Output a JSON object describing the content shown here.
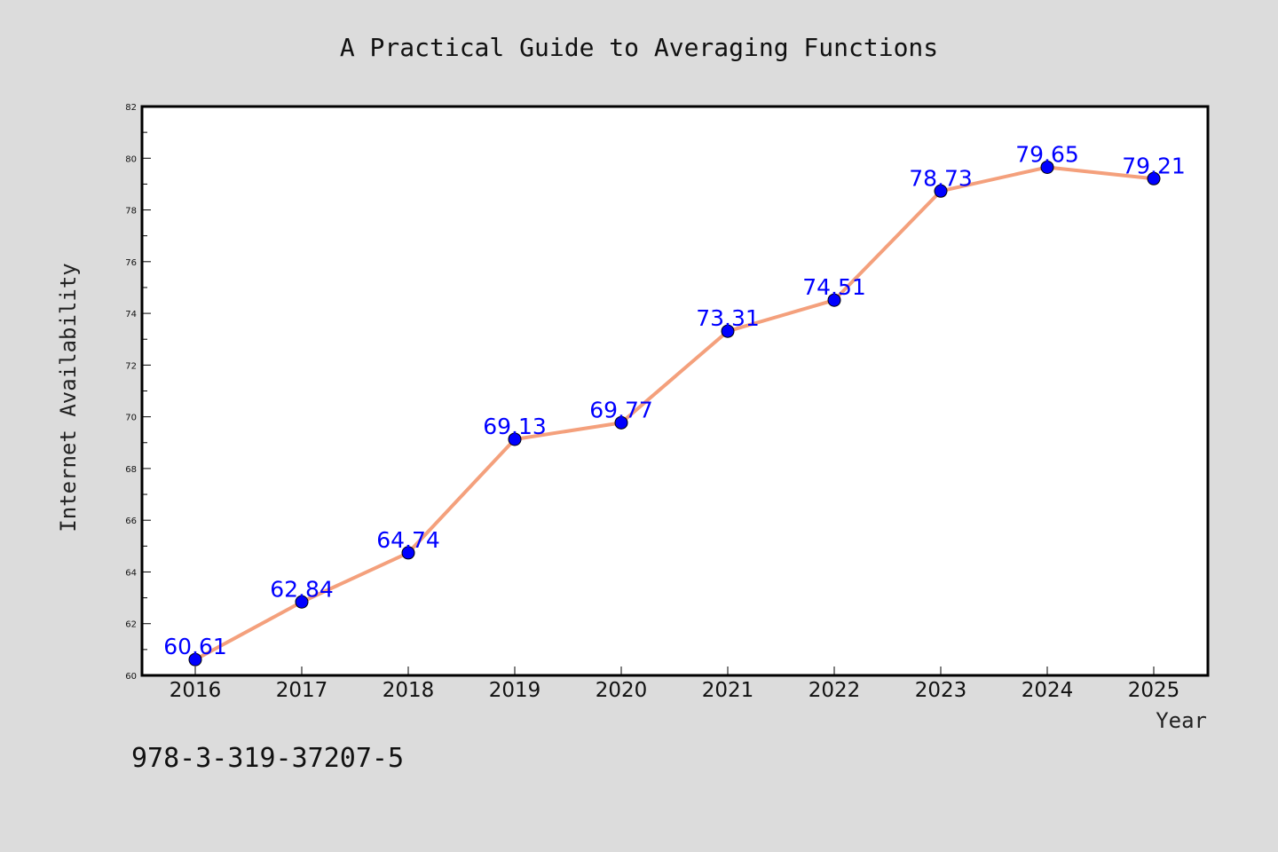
{
  "chart_data": {
    "type": "line",
    "title": "A Practical Guide to Averaging Functions",
    "xlabel": "Year",
    "ylabel": "Internet Availability",
    "x": [
      "2016",
      "2017",
      "2018",
      "2019",
      "2020",
      "2021",
      "2022",
      "2023",
      "2024",
      "2025"
    ],
    "series": [
      {
        "values": [
          60.61,
          62.84,
          64.74,
          69.13,
          69.77,
          73.31,
          74.51,
          78.73,
          79.65,
          79.21
        ],
        "line_color": "#f4a07c",
        "marker_color": "#0000ff"
      }
    ],
    "data_labels": [
      "60.61",
      "62.84",
      "64.74",
      "69.13",
      "69.77",
      "73.31",
      "74.51",
      "78.73",
      "79.65",
      "79.21"
    ],
    "ylim": [
      60,
      82
    ],
    "yticks": [
      "60",
      "62",
      "64",
      "66",
      "68",
      "70",
      "72",
      "74",
      "76",
      "78",
      "80",
      "82"
    ],
    "grid": false,
    "legend": "none"
  },
  "footer": {
    "code": "978-3-319-37207-5"
  },
  "colors": {
    "background": "#dcdcdc",
    "plot_background": "#ffffff",
    "label": "#0000ff"
  }
}
